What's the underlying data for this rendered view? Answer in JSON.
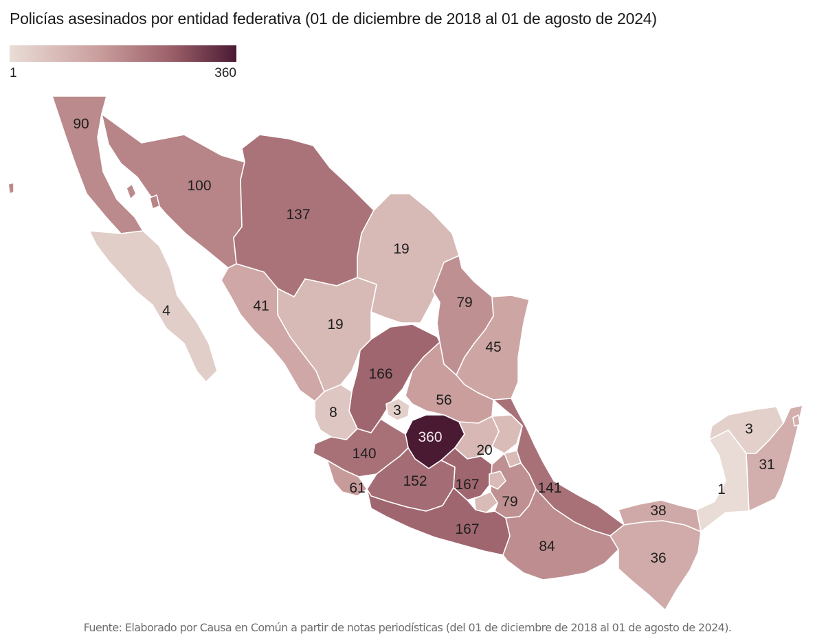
{
  "title": "Policías asesinados por entidad federativa (01 de diciembre de 2018 al 01 de agosto de 2024)",
  "legend": {
    "min_label": "1",
    "max_label": "360",
    "min_value": 1,
    "max_value": 360,
    "colors": [
      "#e9dcd6",
      "#c99d9c",
      "#9a5e68",
      "#4a1a33"
    ]
  },
  "source": "Fuente: Elaborado por Causa en Común a partir de notas periodísticas (del 01 de diciembre de 2018 al 01 de agosto de 2024).",
  "states": [
    {
      "key": "baja-california",
      "value": 90,
      "label": "90"
    },
    {
      "key": "sonora",
      "value": 100,
      "label": "100"
    },
    {
      "key": "chihuahua",
      "value": 137,
      "label": "137"
    },
    {
      "key": "baja-california-sur",
      "value": 4,
      "label": "4"
    },
    {
      "key": "coahuila",
      "value": 19,
      "label": "19"
    },
    {
      "key": "sinaloa",
      "value": 41,
      "label": "41"
    },
    {
      "key": "durango",
      "value": 19,
      "label": "19"
    },
    {
      "key": "nuevo-leon",
      "value": 79,
      "label": "79"
    },
    {
      "key": "tamaulipas",
      "value": 45,
      "label": "45"
    },
    {
      "key": "zacatecas",
      "value": 166,
      "label": "166"
    },
    {
      "key": "san-luis-potosi",
      "value": 56,
      "label": "56"
    },
    {
      "key": "nayarit",
      "value": 8,
      "label": "8"
    },
    {
      "key": "aguascalientes",
      "value": 3,
      "label": "3"
    },
    {
      "key": "guanajuato",
      "value": 360,
      "label": "360"
    },
    {
      "key": "queretaro",
      "value": 20,
      "label": "20"
    },
    {
      "key": "jalisco",
      "value": 140,
      "label": "140"
    },
    {
      "key": "colima",
      "value": 61,
      "label": "61"
    },
    {
      "key": "michoacan",
      "value": 152,
      "label": "152"
    },
    {
      "key": "estado-de-mexico",
      "value": 167,
      "label": "167"
    },
    {
      "key": "puebla",
      "value": 79,
      "label": "79"
    },
    {
      "key": "veracruz",
      "value": 141,
      "label": "141"
    },
    {
      "key": "guerrero",
      "value": 167,
      "label": "167"
    },
    {
      "key": "oaxaca",
      "value": 84,
      "label": "84"
    },
    {
      "key": "tabasco",
      "value": 38,
      "label": "38"
    },
    {
      "key": "chiapas",
      "value": 36,
      "label": "36"
    },
    {
      "key": "campeche",
      "value": 1,
      "label": "1"
    },
    {
      "key": "yucatan",
      "value": 3,
      "label": "3"
    },
    {
      "key": "quintana-roo",
      "value": 31,
      "label": "31"
    },
    {
      "key": "hidalgo",
      "value": null,
      "label": ""
    },
    {
      "key": "tlaxcala",
      "value": null,
      "label": ""
    },
    {
      "key": "morelos",
      "value": null,
      "label": ""
    },
    {
      "key": "ciudad-de-mexico",
      "value": null,
      "label": ""
    }
  ]
}
